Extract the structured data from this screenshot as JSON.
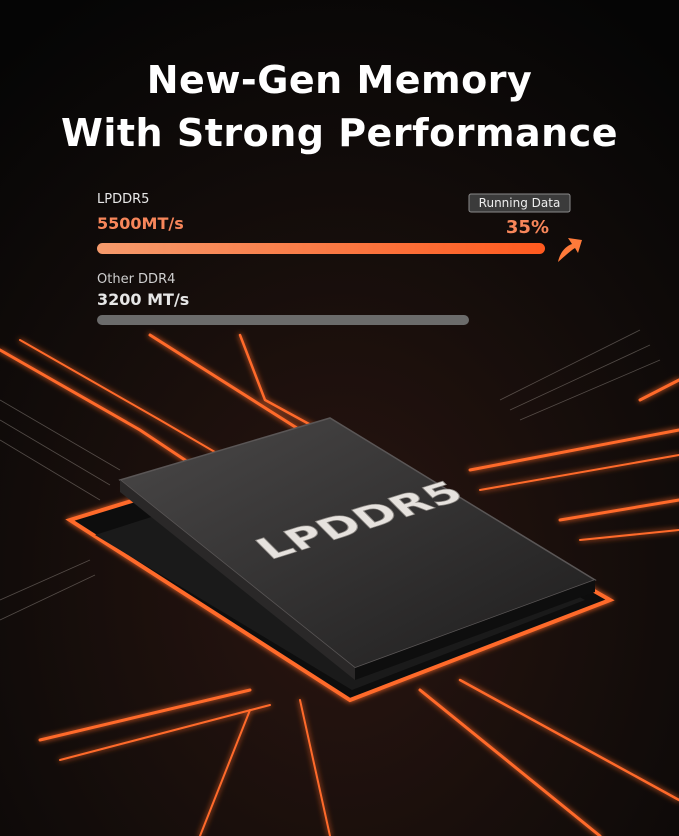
{
  "title": [
    "New-Gen Memory",
    "With Strong Performance"
  ],
  "comparison": {
    "items": [
      {
        "name": "LPDDR5",
        "speed": "5500MT/s"
      },
      {
        "name": "Other DDR4",
        "speed": "3200 MT/s"
      }
    ],
    "badge": "Running Data",
    "gain": "35%"
  },
  "chip_label": "LPDDR5"
}
